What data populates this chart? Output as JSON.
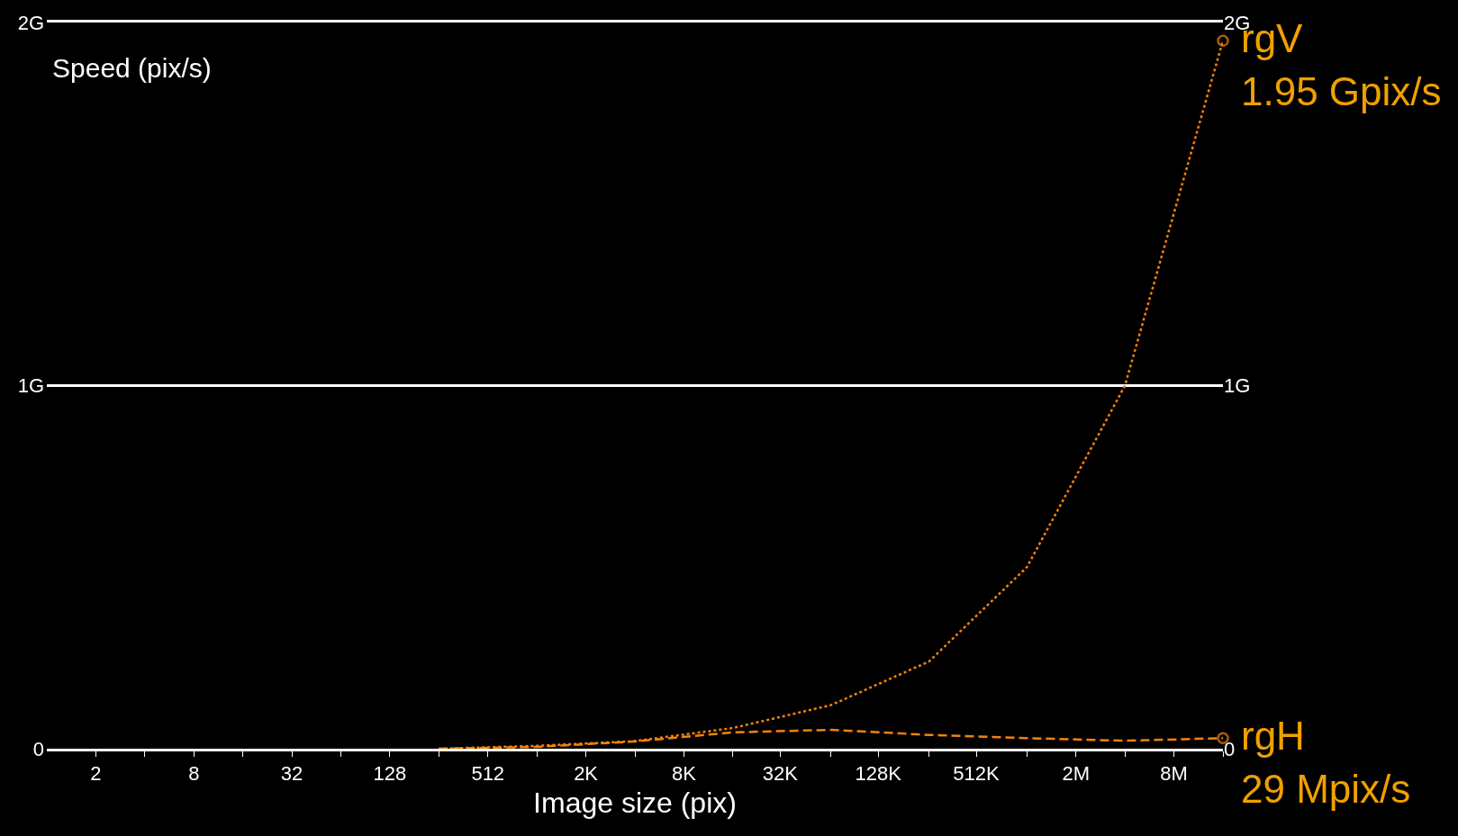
{
  "chart_data": {
    "type": "line",
    "xlabel": "Image size (pix)",
    "ylabel": "Speed (pix/s)",
    "log": "x",
    "grid": "y",
    "legend": false,
    "xlim": [
      1,
      16777216
    ],
    "xticks": [
      {
        "value": 2,
        "label": "2"
      },
      {
        "value": 4,
        "label": null
      },
      {
        "value": 8,
        "label": "8"
      },
      {
        "value": 16,
        "label": null
      },
      {
        "value": 32,
        "label": "32"
      },
      {
        "value": 64,
        "label": null
      },
      {
        "value": 128,
        "label": "128"
      },
      {
        "value": 256,
        "label": null
      },
      {
        "value": 512,
        "label": "512"
      },
      {
        "value": 1024,
        "label": null
      },
      {
        "value": 2048,
        "label": "2K"
      },
      {
        "value": 4096,
        "label": null
      },
      {
        "value": 8192,
        "label": "8K"
      },
      {
        "value": 16384,
        "label": null
      },
      {
        "value": 32000,
        "label": "32K"
      },
      {
        "value": 65536,
        "label": null
      },
      {
        "value": 128000,
        "label": "128K"
      },
      {
        "value": 262144,
        "label": null
      },
      {
        "value": 512000,
        "label": "512K"
      },
      {
        "value": 1048576,
        "label": null
      },
      {
        "value": 2097152,
        "label": "2M"
      },
      {
        "value": 4194304,
        "label": null
      },
      {
        "value": 8388608,
        "label": "8M"
      },
      {
        "value": 16777216,
        "label": null
      }
    ],
    "ylim": [
      0,
      2
    ],
    "yticks": [
      0,
      {
        "value": 1,
        "label": "1G"
      },
      {
        "value": 2,
        "label": "2G"
      }
    ],
    "y2lim": [
      0,
      2
    ],
    "y2ticks": [
      0,
      {
        "value": 1,
        "label": "1G"
      },
      {
        "value": 2,
        "label": "2G"
      }
    ],
    "x": [
      256,
      1024,
      4096,
      16384,
      65536,
      262144,
      1048576,
      4194304,
      16777216
    ],
    "series": [
      {
        "name": "rgV",
        "color": "#f5820a",
        "line_style": "dotted",
        "values": [
          0,
          0.008,
          0.021,
          0.057,
          0.12,
          0.24,
          0.5,
          1.0,
          1.95
        ]
      },
      {
        "name": "rgH",
        "color": "#f5820a",
        "line_style": "dashed",
        "values": [
          0,
          0.005,
          0.02,
          0.045,
          0.052,
          0.038,
          0.029,
          0.022,
          0.029
        ]
      }
    ],
    "annotations": [
      "1.95 Gpix/s",
      "29 Mpix/s"
    ]
  }
}
